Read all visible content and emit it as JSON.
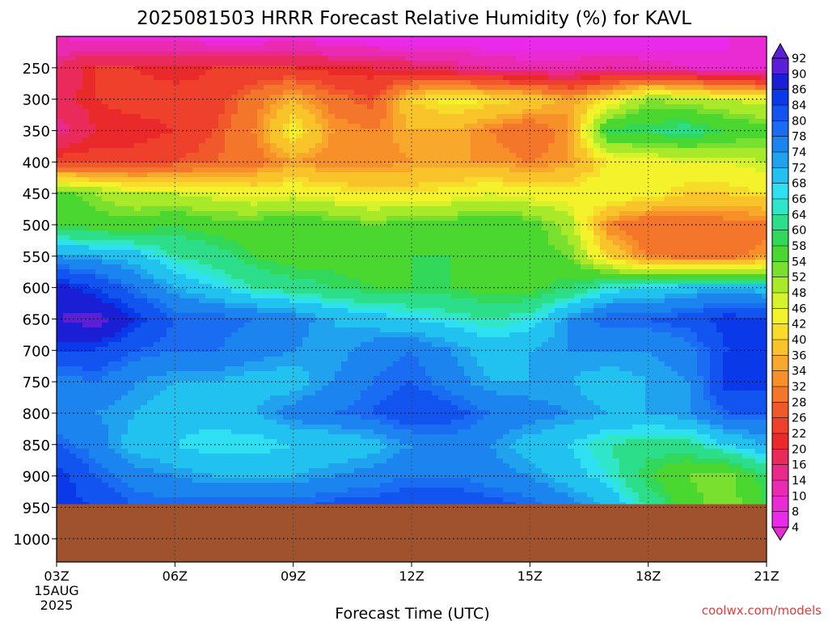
{
  "title": "2025081503 HRRR Forecast Relative Humidity (%) for KAVL",
  "credit": "coolwx.com/models",
  "chart_data": {
    "type": "heatmap",
    "title": "2025081503 HRRR Forecast Relative Humidity (%) for KAVL",
    "xlabel": "Forecast Time (UTC)",
    "ylabel": "",
    "x_ticks": [
      "03Z",
      "06Z",
      "09Z",
      "12Z",
      "15Z",
      "18Z",
      "21Z"
    ],
    "x_first_tick_extra": [
      "15AUG",
      "2025"
    ],
    "x_hours": [
      3,
      6,
      9,
      12,
      15,
      18,
      21
    ],
    "y_ticks": [
      250,
      300,
      350,
      400,
      450,
      500,
      550,
      600,
      650,
      700,
      750,
      800,
      850,
      900,
      950,
      1000
    ],
    "ylim": [
      1037,
      200
    ],
    "grid": true,
    "colorbar_labels": [
      92,
      90,
      86,
      84,
      80,
      78,
      74,
      72,
      68,
      66,
      64,
      60,
      58,
      54,
      52,
      48,
      46,
      42,
      40,
      36,
      34,
      32,
      28,
      26,
      22,
      20,
      16,
      14,
      10,
      8,
      4
    ],
    "colorbar_colors": [
      "#5a1fd6",
      "#1a1fd6",
      "#0a39ea",
      "#1254f0",
      "#1a6cf2",
      "#1c84ee",
      "#20a2ee",
      "#22c2f0",
      "#2ee0f2",
      "#30e6c8",
      "#2cde8a",
      "#32d85a",
      "#4ad830",
      "#7ae030",
      "#a8ea2a",
      "#d6f22a",
      "#f4f22a",
      "#f8dc2a",
      "#f8c42a",
      "#f8a82a",
      "#f8902a",
      "#f4762a",
      "#f05a2a",
      "#ee402a",
      "#ea2a2a",
      "#ea2a5a",
      "#ea2a8a",
      "#ea2ab2",
      "#ea2ad2",
      "#ea2aea"
    ],
    "pressure_levels": [
      200,
      250,
      300,
      350,
      400,
      450,
      500,
      550,
      600,
      650,
      700,
      750,
      800,
      850,
      900,
      950
    ],
    "surface_pressure": 945,
    "ground_color": "#a0522d",
    "values": [
      [
        10,
        8,
        8,
        8,
        6,
        6,
        8,
        6,
        4,
        4,
        4,
        4,
        4,
        4,
        4,
        4,
        6,
        8,
        10
      ],
      [
        16,
        22,
        22,
        20,
        22,
        22,
        22,
        20,
        20,
        18,
        16,
        14,
        12,
        12,
        14,
        12,
        10,
        8,
        8
      ],
      [
        18,
        22,
        24,
        24,
        24,
        30,
        36,
        30,
        26,
        40,
        44,
        42,
        40,
        34,
        42,
        52,
        50,
        48,
        46
      ],
      [
        14,
        20,
        20,
        22,
        26,
        32,
        44,
        34,
        32,
        36,
        36,
        32,
        28,
        34,
        60,
        60,
        62,
        58,
        56
      ],
      [
        24,
        24,
        24,
        26,
        28,
        30,
        34,
        32,
        32,
        34,
        34,
        34,
        32,
        34,
        42,
        44,
        46,
        46,
        48
      ],
      [
        56,
        52,
        48,
        48,
        46,
        44,
        46,
        44,
        42,
        42,
        44,
        46,
        44,
        44,
        46,
        44,
        40,
        40,
        42
      ],
      [
        58,
        56,
        56,
        58,
        56,
        56,
        58,
        56,
        54,
        56,
        56,
        58,
        56,
        50,
        32,
        28,
        28,
        30,
        30
      ],
      [
        74,
        72,
        70,
        64,
        62,
        58,
        56,
        56,
        56,
        58,
        58,
        56,
        56,
        54,
        40,
        32,
        30,
        30,
        34
      ],
      [
        88,
        84,
        78,
        72,
        68,
        64,
        62,
        60,
        58,
        58,
        58,
        56,
        56,
        60,
        66,
        68,
        70,
        72,
        70
      ],
      [
        90,
        92,
        86,
        80,
        80,
        78,
        76,
        72,
        70,
        68,
        66,
        64,
        66,
        74,
        80,
        80,
        82,
        86,
        84
      ],
      [
        84,
        84,
        80,
        78,
        78,
        76,
        74,
        72,
        76,
        78,
        74,
        70,
        72,
        74,
        74,
        74,
        76,
        84,
        84
      ],
      [
        76,
        78,
        74,
        72,
        72,
        70,
        70,
        74,
        78,
        80,
        76,
        72,
        72,
        72,
        70,
        72,
        74,
        86,
        86
      ],
      [
        74,
        74,
        72,
        70,
        70,
        72,
        76,
        78,
        80,
        84,
        82,
        78,
        76,
        74,
        72,
        72,
        74,
        80,
        80
      ],
      [
        80,
        76,
        70,
        68,
        66,
        66,
        68,
        68,
        70,
        74,
        76,
        74,
        70,
        68,
        64,
        62,
        62,
        68,
        72
      ],
      [
        86,
        80,
        76,
        74,
        72,
        72,
        72,
        74,
        76,
        78,
        78,
        76,
        74,
        70,
        66,
        58,
        54,
        52,
        60
      ],
      [
        86,
        84,
        80,
        80,
        80,
        80,
        80,
        82,
        82,
        84,
        84,
        82,
        80,
        76,
        72,
        64,
        56,
        52,
        58
      ]
    ]
  }
}
